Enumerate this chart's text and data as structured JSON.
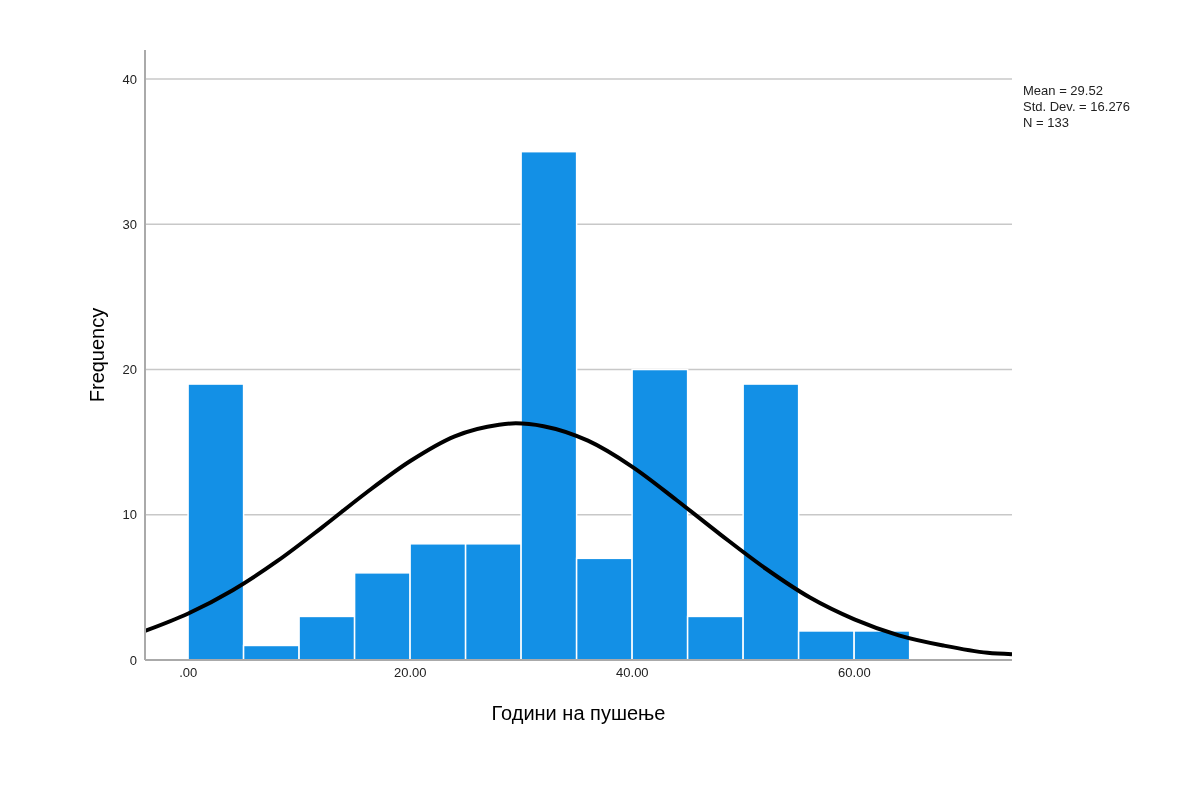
{
  "chart_data": {
    "type": "histogram",
    "xlabel": "Години на пушење",
    "ylabel": "Frequency",
    "bins": [
      0,
      5,
      10,
      15,
      20,
      25,
      30,
      35,
      40,
      45,
      50,
      55,
      60,
      65
    ],
    "series": [
      {
        "color": "#1390e6",
        "values": [
          19,
          1,
          3,
          6,
          8,
          8,
          35,
          7,
          20,
          3,
          19,
          2,
          2
        ]
      },
      {
        "type": "line",
        "color": "#000000",
        "x": [
          -3.9,
          0,
          4,
          8,
          12,
          16,
          20,
          24,
          28,
          29.5,
          32,
          36,
          40,
          44,
          48,
          52,
          56,
          60,
          64,
          68,
          72,
          74.2
        ],
        "values": [
          2.0,
          3.2,
          4.8,
          6.8,
          9.1,
          11.5,
          13.7,
          15.4,
          16.2,
          16.3,
          16.1,
          15.1,
          13.3,
          11.0,
          8.6,
          6.3,
          4.3,
          2.8,
          1.7,
          1.0,
          0.5,
          0.4
        ]
      }
    ],
    "xlim": [
      -3.9,
      74.2
    ],
    "xticks": [
      {
        "value": 0,
        "label": ".00"
      },
      {
        "value": 20,
        "label": "20.00"
      },
      {
        "value": 40,
        "label": "40.00"
      },
      {
        "value": 60,
        "label": "60.00"
      }
    ],
    "ylim": [
      0,
      42
    ],
    "yticks": [
      0,
      10,
      20,
      30,
      40
    ],
    "grid": "y",
    "marker": "none",
    "line_style": "solid",
    "annotations": [
      "Mean = 29.52",
      "Std. Dev. = 16.276",
      "N = 133"
    ]
  }
}
